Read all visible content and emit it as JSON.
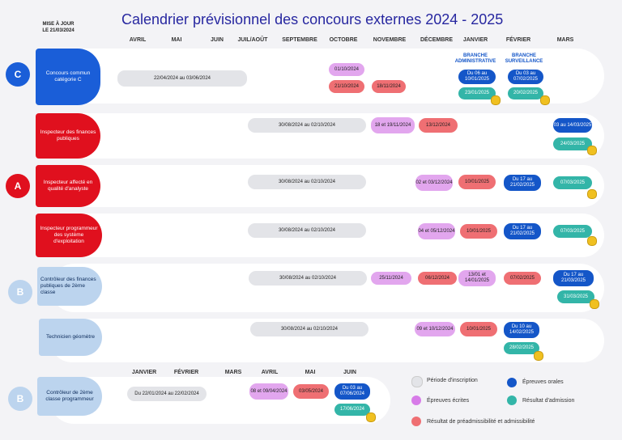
{
  "title": "Calendrier prévisionnel des concours externes 2024 - 2025",
  "updated": "MISE À JOUR LE 21/03/2024",
  "months": [
    "AVRIL",
    "MAI",
    "JUIN",
    "JUIL/AOÛT",
    "SEPTEMBRE",
    "OCTOBRE",
    "NOVEMBRE",
    "DÉCEMBRE",
    "JANVIER",
    "FÉVRIER",
    "MARS"
  ],
  "months_bottom": [
    "JANVIER",
    "FÉVRIER",
    "MARS",
    "AVRIL",
    "MAI",
    "JUIN"
  ],
  "categories": {
    "c": "C",
    "a": "A",
    "b1": "B",
    "b2": "B"
  },
  "rows": {
    "r1": {
      "label": "Concours commun catégorie C",
      "reg": "22/04/2024 au 03/06/2024",
      "ecrit": "01/10/2024",
      "preadm1": "21/10/2024",
      "preadm2": "18/11/2024",
      "branch1": "BRANCHE ADMINISTRATIVE",
      "branch2": "BRANCHE SURVEILLANCE",
      "oral1": "Du 06 au 10/01/2025",
      "oral2": "Du 03 au 07/02/2025",
      "res1": "23/01/2025",
      "res2": "20/02/2025"
    },
    "r2": {
      "label": "Inspecteur des finances publiques",
      "reg": "30/08/2024 au 02/10/2024",
      "ecrit": "18 et 19/11/2024",
      "preadm": "13/12/2024",
      "oral": "03 au 14/03/2025",
      "res": "24/03/2025"
    },
    "r3": {
      "label": "Inspecteur affecté en qualité d'analyste",
      "reg": "30/08/2024 au 02/10/2024",
      "ecrit": "02 et 03/12/2024",
      "preadm": "10/01/2025",
      "oral": "Du 17 au 21/02/2025",
      "res": "07/03/2025"
    },
    "r4": {
      "label": "Inspecteur programmeur des système d'exploitation",
      "reg": "30/08/2024 au 02/10/2024",
      "ecrit": "04 et 05/12/2024",
      "preadm": "10/01/2025",
      "oral": "Du 17 au 21/02/2025",
      "res": "07/03/2025"
    },
    "r5": {
      "label": "Contrôleur des finances publiques de 2ème classe",
      "reg": "30/08/2024 au 02/10/2024",
      "ecrit": "25/11/2024",
      "preadm1": "06/12/2024",
      "ecrit2": "13/01 et 14/01/2025",
      "preadm2": "07/02/2025",
      "oral": "Du 17 au 21/03/2025",
      "res": "31/03/2025"
    },
    "r6": {
      "label": "Technicien géomètre",
      "reg": "30/08/2024 au 02/10/2024",
      "ecrit": "09 et 10/12/2024",
      "preadm": "10/01/2025",
      "oral": "Du 10 au 14/02/2025",
      "res": "28/02/2025"
    },
    "r7": {
      "label": "Contrôleur de 2ème classe programmeur",
      "reg": "Du 22/01/2024 au 22/02/2024",
      "ecrit": "08 et 09/04/2024",
      "preadm": "03/05/2024",
      "oral": "Du 03 au 07/06/2024",
      "res": "17/06/2024"
    }
  },
  "legend": {
    "inscription": "Période d'inscription",
    "ecrites": "Épreuves écrites",
    "preadm": "Résultat de préadmissibilité et admissibilité",
    "orales": "Épreuves orales",
    "admission": "Résultat d'admission"
  },
  "colors": {
    "gray": "#e3e4e8",
    "purple": "#e2a6ee",
    "red": "#ef6f73",
    "blue": "#1456c8",
    "teal": "#33b5a8"
  }
}
